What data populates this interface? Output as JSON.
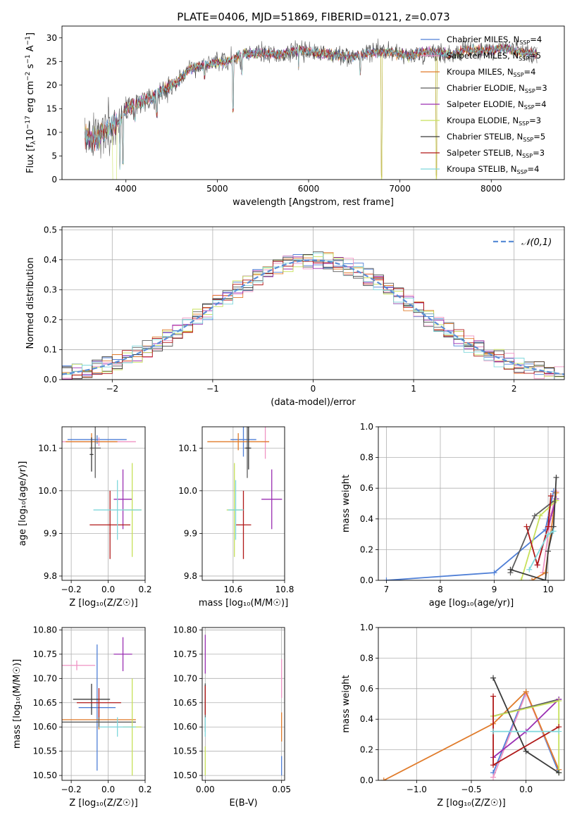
{
  "title": "PLATE=0406, MJD=51869, FIBERID=0121, z=0.073",
  "series": [
    {
      "name": "Chabrier MILES",
      "nssp": "4",
      "color": "#4f7fd6"
    },
    {
      "name": "Salpeter MILES",
      "nssp": "5",
      "color": "#ef93c3"
    },
    {
      "name": "Kroupa MILES",
      "nssp": "4",
      "color": "#e07b2a"
    },
    {
      "name": "Chabrier ELODIE",
      "nssp": "3",
      "color": "#5e5e5e"
    },
    {
      "name": "Salpeter ELODIE",
      "nssp": "4",
      "color": "#9a2fb2"
    },
    {
      "name": "Kroupa ELODIE",
      "nssp": "3",
      "color": "#c7e05a"
    },
    {
      "name": "Chabrier STELIB",
      "nssp": "5",
      "color": "#3b3b3b"
    },
    {
      "name": "Salpeter STELIB",
      "nssp": "3",
      "color": "#b01818"
    },
    {
      "name": "Kroupa STELIB",
      "nssp": "4",
      "color": "#7fd7dc"
    }
  ],
  "chart_data": [
    {
      "type": "line",
      "id": "spectrum",
      "xlabel": "wavelength [Angstrom, rest frame]",
      "xlim": [
        3300,
        8800
      ],
      "ylim": [
        0,
        32.5
      ],
      "xticks": [
        4000,
        5000,
        6000,
        7000,
        8000
      ],
      "yticks": [
        0,
        5,
        10,
        15,
        20,
        25,
        30
      ],
      "continuum": {
        "x": [
          3550,
          3650,
          3750,
          3850,
          3950,
          4000,
          4100,
          4250,
          4400,
          4550,
          4700,
          4900,
          5100,
          5300,
          5500,
          5700,
          5900,
          6100,
          6300,
          6500,
          6700,
          6900,
          7100,
          7200,
          7300,
          7400,
          7500,
          7600,
          7700,
          7800,
          7900,
          8000,
          8100,
          8200,
          8300,
          8400,
          8500
        ],
        "y": [
          9.5,
          8.5,
          9.8,
          11.5,
          12.5,
          15,
          16,
          17,
          19,
          20.5,
          23.5,
          24.5,
          25,
          26.5,
          26.8,
          26.5,
          27.5,
          26.8,
          26.3,
          26,
          27,
          27,
          26.2,
          26.8,
          27,
          27.3,
          26.5,
          26.5,
          27.5,
          27.3,
          27.5,
          27.3,
          27.8,
          27.6,
          27,
          26.8,
          26.5
        ]
      },
      "dips": [
        [
          3934,
          2
        ],
        [
          3968,
          3
        ],
        [
          4101,
          12
        ],
        [
          4340,
          13
        ],
        [
          4861,
          21
        ],
        [
          5175,
          14
        ],
        [
          5270,
          22
        ],
        [
          5890,
          23
        ],
        [
          6563,
          22
        ],
        [
          6800,
          0
        ],
        [
          7400,
          0
        ]
      ]
    },
    {
      "type": "line",
      "id": "residuals",
      "xlabel": "(data-model)/error",
      "ylabel": "Normed distribution",
      "xlim": [
        -2.5,
        2.5
      ],
      "ylim": [
        0,
        0.51
      ],
      "xticks": [
        -2,
        -1,
        0,
        1,
        2
      ],
      "yticks": [
        0,
        0.1,
        0.2,
        0.3,
        0.4,
        0.5
      ],
      "bin_width": 0.1,
      "reference": {
        "name": "𝒩(0,1)",
        "color": "#5b8ed6"
      }
    },
    {
      "type": "scatter",
      "id": "age-vs-Z",
      "xlabel": "Z [log₁₀(Z/Z☉)]",
      "ylabel": "age  [log₁₀(age/yr)]",
      "xlim": [
        -0.25,
        0.2
      ],
      "ylim": [
        9.79,
        10.15
      ],
      "xticks": [
        -0.2,
        0,
        0.2
      ],
      "yticks": [
        9.8,
        9.9,
        10.0,
        10.1
      ],
      "points": [
        {
          "x": -0.06,
          "y": 10.12,
          "xerr": 0.16,
          "yerr": 0.01
        },
        {
          "x": -0.05,
          "y": 10.115,
          "xerr": 0.2,
          "yerr": 0.01
        },
        {
          "x": -0.09,
          "y": 10.115,
          "xerr": 0.14,
          "yerr": 0.02
        },
        {
          "x": -0.07,
          "y": 10.1,
          "xerr": 0.03,
          "yerr": 0.07
        },
        {
          "x": 0.08,
          "y": 9.98,
          "xerr": 0.05,
          "yerr": 0.07
        },
        {
          "x": 0.13,
          "y": 9.955,
          "xerr": 0.05,
          "yerr": 0.11
        },
        {
          "x": -0.09,
          "y": 10.085,
          "xerr": 0.01,
          "yerr": 0.04
        },
        {
          "x": 0.01,
          "y": 9.92,
          "xerr": 0.11,
          "yerr": 0.08
        },
        {
          "x": 0.05,
          "y": 9.955,
          "xerr": 0.13,
          "yerr": 0.07
        }
      ]
    },
    {
      "type": "scatter",
      "id": "age-vs-mass",
      "xlabel": "mass [log₁₀(M/M☉)]",
      "xlim": [
        10.48,
        10.8
      ],
      "ylim": [
        9.79,
        10.15
      ],
      "xticks": [
        10.6,
        10.8
      ],
      "yticks": [
        9.8,
        9.9,
        10.0,
        10.1
      ],
      "points": [
        {
          "x": 10.64,
          "y": 10.12,
          "xerr": 0.05,
          "yerr": 0.04
        },
        {
          "x": 10.725,
          "y": 10.115,
          "xerr": 0.015,
          "yerr": 0.04
        },
        {
          "x": 10.62,
          "y": 10.115,
          "xerr": 0.12,
          "yerr": 0.02
        },
        {
          "x": 10.655,
          "y": 10.1,
          "xerr": 0.01,
          "yerr": 0.07
        },
        {
          "x": 10.75,
          "y": 9.98,
          "xerr": 0.04,
          "yerr": 0.07
        },
        {
          "x": 10.605,
          "y": 9.955,
          "xerr": 0.03,
          "yerr": 0.11
        },
        {
          "x": 10.66,
          "y": 10.1,
          "xerr": 0.01,
          "yerr": 0.05
        },
        {
          "x": 10.64,
          "y": 9.92,
          "xerr": 0.03,
          "yerr": 0.08
        },
        {
          "x": 10.61,
          "y": 9.955,
          "xerr": 0.03,
          "yerr": 0.07
        }
      ]
    },
    {
      "type": "line",
      "id": "massweight-vs-age",
      "xlabel": "age  [log₁₀(age/yr)]",
      "ylabel": "mass weight",
      "xlim": [
        6.85,
        10.3
      ],
      "ylim": [
        0,
        1
      ],
      "xticks": [
        7,
        8,
        9,
        10
      ],
      "yticks": [
        0,
        0.2,
        0.4,
        0.6,
        0.8,
        1.0
      ],
      "lines": [
        {
          "x": [
            7.0,
            9.0,
            9.95,
            10.1
          ],
          "y": [
            0.0,
            0.05,
            0.33,
            0.58
          ]
        },
        {
          "x": [
            9.9,
            10.05,
            10.15
          ],
          "y": [
            0.05,
            0.42,
            0.58
          ]
        },
        {
          "x": [
            9.7,
            9.95,
            10.15
          ],
          "y": [
            0.0,
            0.05,
            0.57
          ]
        },
        {
          "x": [
            9.3,
            9.75,
            10.15
          ],
          "y": [
            0.05,
            0.42,
            0.53
          ]
        },
        {
          "x": [
            9.8,
            10.0,
            10.15
          ],
          "y": [
            0.1,
            0.35,
            0.53
          ]
        },
        {
          "x": [
            9.5,
            9.85,
            10.15
          ],
          "y": [
            0.0,
            0.42,
            0.52
          ]
        },
        {
          "x": [
            9.3,
            9.95,
            10.0,
            10.1,
            10.15
          ],
          "y": [
            0.07,
            0.0,
            0.19,
            0.35,
            0.67
          ]
        },
        {
          "x": [
            9.6,
            9.8,
            10.0,
            10.05
          ],
          "y": [
            0.35,
            0.1,
            0.35,
            0.55
          ]
        },
        {
          "x": [
            9.65,
            10.0,
            10.1
          ],
          "y": [
            0.07,
            0.3,
            0.32
          ]
        }
      ]
    },
    {
      "type": "scatter",
      "id": "mass-vs-Z",
      "xlabel": "Z [log₁₀(Z/Z☉)]",
      "ylabel": "mass [log₁₀(M/M☉)]",
      "xlim": [
        -0.25,
        0.2
      ],
      "ylim": [
        10.49,
        10.805
      ],
      "xticks": [
        -0.2,
        0,
        0.2
      ],
      "yticks": [
        10.5,
        10.55,
        10.6,
        10.65,
        10.7,
        10.75,
        10.8
      ],
      "points": [
        {
          "x": -0.06,
          "y": 10.64,
          "xerr": 0.1,
          "yerr": 0.13
        },
        {
          "x": -0.17,
          "y": 10.727,
          "xerr": 0.1,
          "yerr": 0.01
        },
        {
          "x": -0.05,
          "y": 10.615,
          "xerr": 0.2,
          "yerr": 0.02
        },
        {
          "x": -0.05,
          "y": 10.61,
          "xerr": 0.2,
          "yerr": 0.01
        },
        {
          "x": 0.08,
          "y": 10.75,
          "xerr": 0.05,
          "yerr": 0.035
        },
        {
          "x": 0.13,
          "y": 10.6,
          "xerr": 0.05,
          "yerr": 0.1
        },
        {
          "x": -0.09,
          "y": 10.657,
          "xerr": 0.1,
          "yerr": 0.032
        },
        {
          "x": -0.05,
          "y": 10.65,
          "xerr": 0.12,
          "yerr": 0.03
        },
        {
          "x": 0.05,
          "y": 10.6,
          "xerr": 0.1,
          "yerr": 0.02
        }
      ]
    },
    {
      "type": "scatter",
      "id": "mass-vs-EBV",
      "xlabel": "E(B-V)",
      "xlim": [
        -0.002,
        0.052
      ],
      "ylim": [
        10.49,
        10.805
      ],
      "xticks": [
        0.0,
        0.05
      ],
      "yticks": [
        10.5,
        10.55,
        10.6,
        10.65,
        10.7,
        10.75,
        10.8
      ],
      "points": [
        {
          "x": 0.05,
          "y": 10.52,
          "yerr": 0.02
        },
        {
          "x": 0.05,
          "y": 10.7,
          "yerr": 0.04
        },
        {
          "x": 0.05,
          "y": 10.6,
          "yerr": 0.03
        },
        {
          "x": 0.0,
          "y": 10.64,
          "yerr": 0.05
        },
        {
          "x": 0.0,
          "y": 10.75,
          "yerr": 0.04
        },
        {
          "x": 0.0,
          "y": 10.53,
          "yerr": 0.03
        },
        {
          "x": 0.0,
          "y": 10.657,
          "yerr": 0.03
        },
        {
          "x": 0.0,
          "y": 10.655,
          "yerr": 0.03
        },
        {
          "x": 0.0,
          "y": 10.6,
          "yerr": 0.02
        }
      ]
    },
    {
      "type": "line",
      "id": "massweight-vs-Z",
      "xlabel": "Z [log₁₀(Z/Z☉)]",
      "ylabel": "mass weight",
      "xlim": [
        -1.35,
        0.35
      ],
      "ylim": [
        0,
        1
      ],
      "xticks": [
        -1.0,
        -0.5,
        0.0
      ],
      "yticks": [
        0,
        0.2,
        0.4,
        0.6,
        0.8,
        1.0
      ],
      "lines": [
        {
          "x": [
            -0.3,
            0.0,
            0.3
          ],
          "y": [
            0.05,
            0.58,
            0.05
          ]
        },
        {
          "x": [
            -0.3,
            0.0,
            0.3
          ],
          "y": [
            0.02,
            0.57,
            0.07
          ]
        },
        {
          "x": [
            -1.3,
            -0.3,
            0.0,
            0.3
          ],
          "y": [
            0.0,
            0.37,
            0.58,
            0.07
          ]
        },
        {
          "x": [
            -0.3,
            0.3
          ],
          "y": [
            0.42,
            0.53
          ]
        },
        {
          "x": [
            -0.3,
            0.0,
            0.3
          ],
          "y": [
            0.15,
            0.32,
            0.53
          ]
        },
        {
          "x": [
            -0.3,
            0.3,
            0.3
          ],
          "y": [
            0.42,
            0.52,
            0.05
          ]
        },
        {
          "x": [
            -0.3,
            0.0,
            0.3
          ],
          "y": [
            0.67,
            0.19,
            0.05
          ]
        },
        {
          "x": [
            -0.3,
            -0.3,
            0.3
          ],
          "y": [
            0.55,
            0.1,
            0.35
          ]
        },
        {
          "x": [
            -0.3,
            0.3
          ],
          "y": [
            0.32,
            0.32
          ]
        }
      ]
    }
  ]
}
